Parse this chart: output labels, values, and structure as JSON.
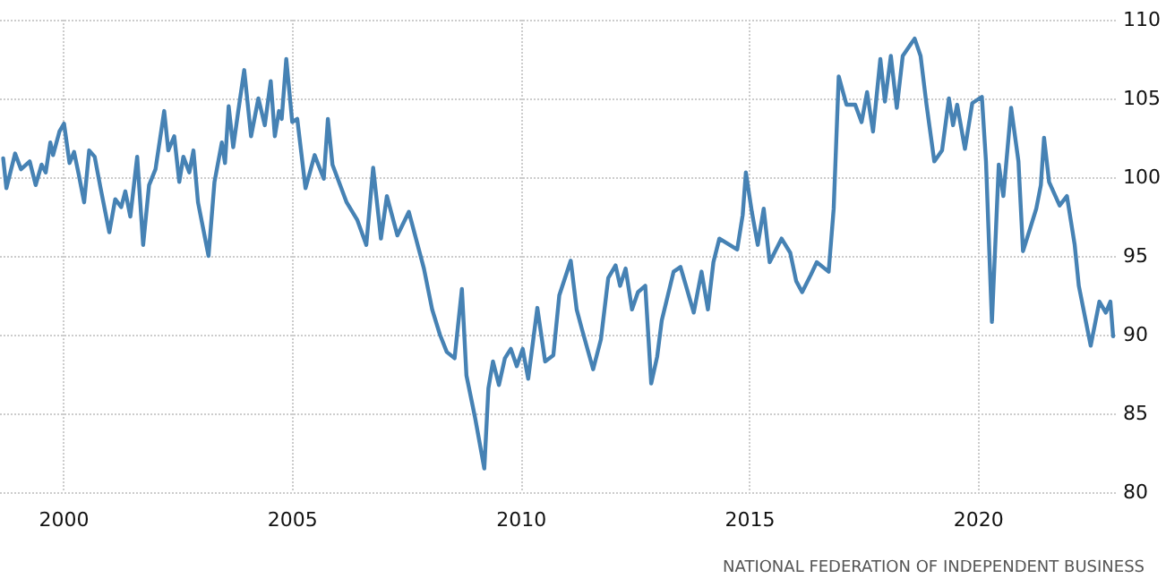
{
  "chart_data": {
    "type": "line",
    "annotations": [
      "NATIONAL FEDERATION OF INDEPENDENT BUSINESS"
    ],
    "x": [
      1998.67,
      1998.74,
      1998.93,
      1999.06,
      1999.25,
      1999.38,
      1999.51,
      1999.6,
      1999.7,
      1999.76,
      1999.9,
      2000.0,
      2000.12,
      2000.22,
      2000.32,
      2000.44,
      2000.55,
      2000.67,
      2000.8,
      2000.99,
      2001.12,
      2001.25,
      2001.34,
      2001.45,
      2001.6,
      2001.73,
      2001.86,
      2002.0,
      2002.19,
      2002.28,
      2002.41,
      2002.52,
      2002.61,
      2002.74,
      2002.83,
      2002.93,
      2003.16,
      2003.29,
      2003.45,
      2003.52,
      2003.6,
      2003.7,
      2003.81,
      2003.94,
      2004.09,
      2004.25,
      2004.39,
      2004.52,
      2004.61,
      2004.7,
      2004.76,
      2004.86,
      2004.99,
      2005.1,
      2005.28,
      2005.48,
      2005.68,
      2005.77,
      2005.87,
      2006.18,
      2006.41,
      2006.61,
      2006.76,
      2006.93,
      2007.06,
      2007.29,
      2007.54,
      2007.87,
      2008.05,
      2008.22,
      2008.37,
      2008.54,
      2008.7,
      2008.8,
      2008.99,
      2009.19,
      2009.28,
      2009.38,
      2009.51,
      2009.64,
      2009.77,
      2009.9,
      2010.03,
      2010.15,
      2010.35,
      2010.52,
      2010.7,
      2010.83,
      2011.08,
      2011.21,
      2011.32,
      2011.57,
      2011.74,
      2011.9,
      2012.06,
      2012.16,
      2012.28,
      2012.42,
      2012.55,
      2012.71,
      2012.84,
      2012.97,
      2013.07,
      2013.33,
      2013.48,
      2013.77,
      2013.94,
      2014.08,
      2014.2,
      2014.33,
      2014.72,
      2014.84,
      2014.91,
      2015.04,
      2015.17,
      2015.3,
      2015.43,
      2015.69,
      2015.88,
      2016.01,
      2016.14,
      2016.33,
      2016.46,
      2016.72,
      2016.83,
      2016.94,
      2017.11,
      2017.3,
      2017.44,
      2017.56,
      2017.69,
      2017.85,
      2017.95,
      2018.08,
      2018.21,
      2018.34,
      2018.6,
      2018.73,
      2018.86,
      2019.03,
      2019.2,
      2019.35,
      2019.44,
      2019.53,
      2019.7,
      2019.86,
      2020.07,
      2020.16,
      2020.29,
      2020.44,
      2020.54,
      2020.71,
      2020.87,
      2020.97,
      2021.26,
      2021.36,
      2021.43,
      2021.54,
      2021.77,
      2021.93,
      2022.1,
      2022.19,
      2022.45,
      2022.64,
      2022.78,
      2022.88,
      2022.94
    ],
    "values": [
      101.2,
      99.3,
      101.5,
      100.5,
      101,
      99.5,
      100.8,
      100.3,
      102.2,
      101.4,
      102.9,
      103.4,
      100.9,
      101.6,
      100.2,
      98.4,
      101.7,
      101.3,
      99.3,
      96.5,
      98.6,
      98.1,
      99.1,
      97.5,
      101.3,
      95.7,
      99.5,
      100.5,
      104.2,
      101.7,
      102.6,
      99.7,
      101.3,
      100.3,
      101.7,
      98.4,
      95.0,
      99.7,
      102.2,
      100.9,
      104.5,
      101.9,
      104.2,
      106.8,
      102.6,
      105.0,
      103.3,
      106.1,
      102.6,
      104.2,
      103.7,
      107.5,
      103.5,
      103.7,
      99.3,
      101.4,
      99.9,
      103.7,
      100.8,
      98.4,
      97.3,
      95.7,
      100.6,
      96.1,
      98.8,
      96.3,
      97.8,
      94.2,
      91.6,
      90.0,
      88.9,
      88.5,
      92.9,
      87.4,
      84.7,
      81.5,
      86.6,
      88.3,
      86.8,
      88.5,
      89.1,
      88.0,
      89.1,
      87.2,
      91.7,
      88.3,
      88.7,
      92.5,
      94.7,
      91.6,
      90.4,
      87.8,
      89.7,
      93.6,
      94.4,
      93.1,
      94.2,
      91.6,
      92.7,
      93.1,
      86.9,
      88.6,
      90.9,
      94.0,
      94.3,
      91.4,
      94.0,
      91.6,
      94.6,
      96.1,
      95.4,
      97.6,
      100.3,
      97.8,
      95.7,
      98.0,
      94.6,
      96.1,
      95.2,
      93.4,
      92.7,
      93.8,
      94.6,
      94.0,
      98.0,
      106.4,
      104.6,
      104.6,
      103.5,
      105.4,
      102.9,
      107.5,
      104.8,
      107.7,
      104.4,
      107.7,
      108.8,
      107.7,
      104.6,
      101.0,
      101.7,
      105.0,
      103.3,
      104.6,
      101.8,
      104.7,
      105.1,
      101.0,
      90.8,
      100.8,
      98.8,
      104.4,
      101.0,
      95.3,
      98.0,
      99.5,
      102.5,
      99.7,
      98.2,
      98.8,
      95.7,
      93.1,
      89.3,
      92.1,
      91.4,
      92.1,
      89.9
    ],
    "color": "#4682b4",
    "xlim": [
      1998.6,
      2023
    ],
    "xticks": [
      2000,
      2005,
      2010,
      2015,
      2020
    ],
    "ylim": [
      80,
      110
    ],
    "yticks": [
      80,
      85,
      90,
      95,
      100,
      105,
      110
    ],
    "grid": true,
    "marker": "none",
    "line_style": "solid"
  }
}
